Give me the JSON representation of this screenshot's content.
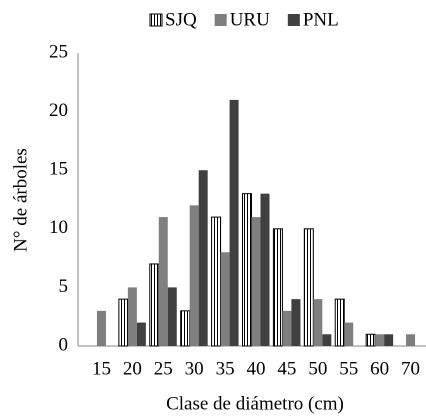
{
  "chart_data": {
    "type": "bar",
    "xlabel": "Clase de diámetro (cm)",
    "ylabel": "N° de árboles",
    "categories": [
      "15",
      "20",
      "25",
      "30",
      "35",
      "40",
      "45",
      "50",
      "55",
      "60",
      "70"
    ],
    "series": [
      {
        "name": "SJQ",
        "color": "#ffffff",
        "hatch": true,
        "values": [
          0,
          4,
          7,
          3,
          11,
          13,
          10,
          10,
          4,
          1,
          0
        ]
      },
      {
        "name": "URU",
        "color": "#7f7f7f",
        "hatch": false,
        "values": [
          3,
          5,
          11,
          12,
          8,
          11,
          3,
          4,
          2,
          1,
          1
        ]
      },
      {
        "name": "PNL",
        "color": "#404040",
        "hatch": false,
        "values": [
          0,
          2,
          5,
          15,
          21,
          13,
          4,
          1,
          0,
          1,
          0
        ]
      }
    ],
    "ylim": [
      0,
      25
    ],
    "yticks": [
      0,
      5,
      10,
      15,
      20,
      25
    ],
    "grid": false,
    "legend": "top"
  }
}
